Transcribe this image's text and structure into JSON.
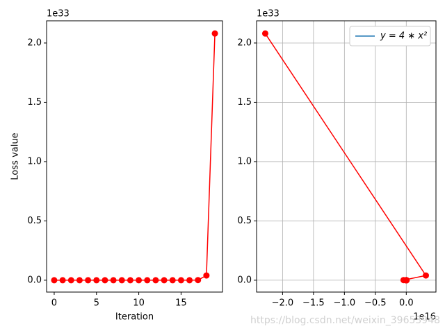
{
  "chart_data": [
    {
      "type": "line",
      "x_label": "Iteration",
      "y_label": "Loss value",
      "y_offset_label": "1e33",
      "x": [
        0,
        1,
        2,
        3,
        4,
        5,
        6,
        7,
        8,
        9,
        10,
        11,
        12,
        13,
        14,
        15,
        16,
        17,
        18,
        19
      ],
      "series": [
        {
          "color": "#ff0000",
          "marker": "o",
          "values": [
            0,
            0,
            0,
            0,
            0,
            0,
            0,
            0,
            0,
            0,
            0,
            0,
            0,
            0,
            0,
            0,
            0,
            0.001,
            0.04,
            2.08
          ]
        }
      ],
      "xlim": [
        -0.9,
        19.9
      ],
      "xticks": [
        0,
        5,
        10,
        15
      ],
      "ylim": [
        -0.1,
        2.187
      ],
      "yticks": [
        {
          "value": 0,
          "label": "0.0"
        },
        0.5,
        {
          "value": 1,
          "label": "1.0"
        },
        1.5,
        {
          "value": 2,
          "label": "2.0"
        }
      ],
      "grid": false
    },
    {
      "type": "line",
      "x_offset_label": "1e16",
      "y_offset_label": "1e33",
      "series": [
        {
          "color": "#ff0000",
          "marker": "o",
          "x": [
            0,
            0,
            0,
            0,
            0,
            0,
            0,
            0,
            0,
            0,
            0,
            0,
            0,
            0,
            0,
            -0.001,
            0.006,
            -0.044,
            0.317,
            -2.28
          ],
          "values": [
            0,
            0,
            0,
            0,
            0,
            0,
            0,
            0,
            0,
            0,
            0,
            0,
            0,
            0,
            0,
            0,
            0,
            0.001,
            0.04,
            2.08
          ]
        }
      ],
      "legend_entries": [
        {
          "name": "y = 4 ∗ x²",
          "color": "#1f77b4"
        }
      ],
      "legend": "upper right",
      "xlim": [
        -2.42,
        0.48
      ],
      "xticks": [
        {
          "value": -2,
          "label": "−2.0"
        },
        {
          "value": -1.5,
          "label": "−1.5"
        },
        {
          "value": -1,
          "label": "−1.0"
        },
        {
          "value": -0.5,
          "label": "−0.5"
        },
        {
          "value": 0,
          "label": "0.0"
        }
      ],
      "ylim": [
        -0.1,
        2.187
      ],
      "yticks": [
        {
          "value": 0,
          "label": "0.0"
        },
        0.5,
        {
          "value": 1,
          "label": "1.0"
        },
        1.5,
        {
          "value": 2,
          "label": "2.0"
        }
      ],
      "grid": true
    }
  ],
  "watermark": "https://blog.csdn.net/weixin_39653948"
}
